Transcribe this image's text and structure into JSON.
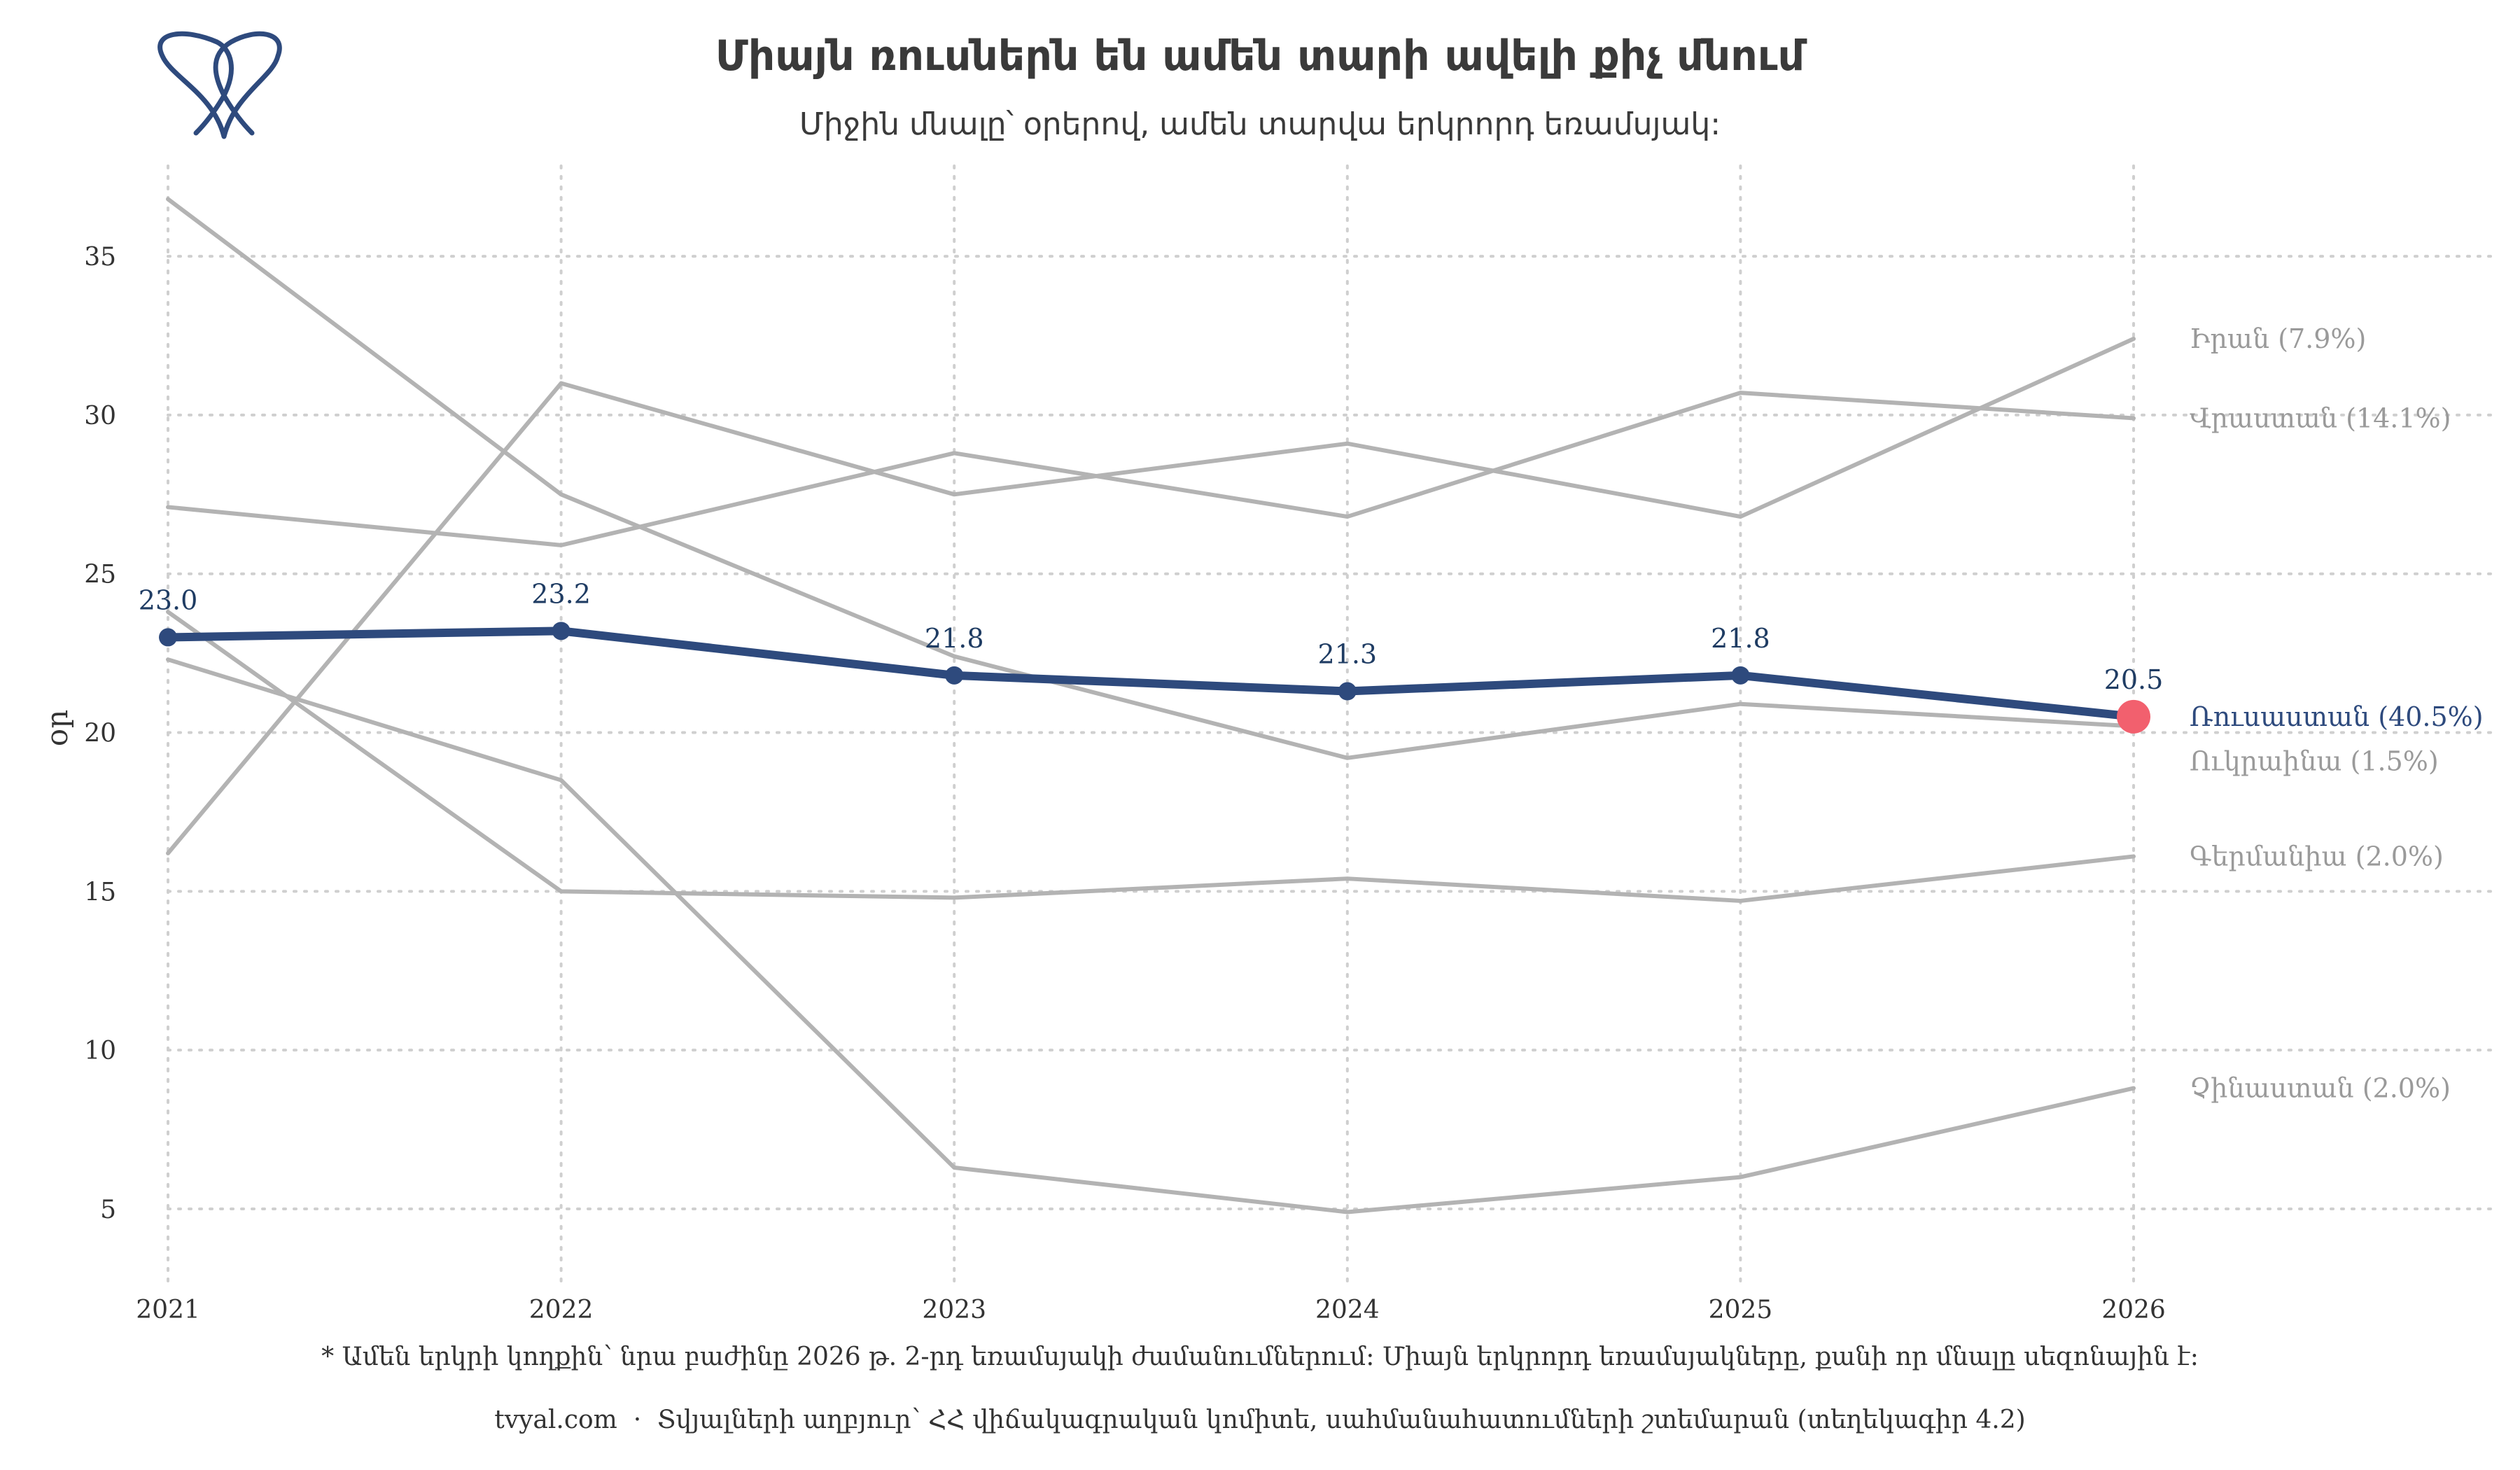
{
  "brand": {
    "logo_icon": "tooth-logo-icon",
    "logo_color": "#2e4a7d"
  },
  "chart_data": {
    "type": "line",
    "title": "Միայն ռուսներն են ամեն տարի ավելի քիչ մնում",
    "subtitle": "Միջին մնալը՝ օրերով, ամեն տարվա երկրորդ եռամսյակ:",
    "xlabel": "",
    "ylabel": "օր",
    "x": [
      2021,
      2022,
      2023,
      2024,
      2025,
      2026
    ],
    "xlim": [
      2021,
      2026
    ],
    "ylim": [
      3.5,
      38
    ],
    "yticks": [
      5,
      10,
      15,
      20,
      25,
      30,
      35
    ],
    "grid": true,
    "highlight_series": "Ռուսաստան (40.5%)",
    "series": [
      {
        "name": "Իրան (7.9%)",
        "values": [
          16.2,
          31.0,
          27.5,
          29.1,
          26.8,
          32.4
        ],
        "color": "#b3b3b3"
      },
      {
        "name": "Վրաստան (14.1%)",
        "values": [
          27.1,
          25.9,
          28.8,
          26.8,
          30.7,
          29.9
        ],
        "color": "#b3b3b3"
      },
      {
        "name": "Ուկրաինա (1.5%)",
        "values": [
          36.8,
          27.5,
          22.4,
          19.2,
          20.9,
          20.2
        ],
        "color": "#b3b3b3"
      },
      {
        "name": "Գերմանիա (2.0%)",
        "values": [
          23.8,
          15.0,
          14.8,
          15.4,
          14.7,
          16.1
        ],
        "color": "#b3b3b3"
      },
      {
        "name": "Չինաստան (2.0%)",
        "values": [
          22.3,
          18.5,
          6.3,
          4.9,
          6.0,
          8.8
        ],
        "color": "#b3b3b3"
      },
      {
        "name": "Ռուսաստան (40.5%)",
        "values": [
          23.0,
          23.2,
          21.8,
          21.3,
          21.8,
          20.5
        ],
        "color": "#2e4a7d",
        "endpoint_color": "#f2606e",
        "value_labels": [
          "23.0",
          "23.2",
          "21.8",
          "21.3",
          "21.8",
          "20.5"
        ]
      }
    ],
    "footnote": "* Ամեն երկրի կողքին՝ նրա բաժինը 2026 թ. 2-րդ եռամսյակի ժամանումներում: Միայն երկրորդ եռամսյակները, քանի որ մնալը սեզոնային է:",
    "source": "tvyal.com  ·  Տվյալների աղբյուր՝ ՀՀ վիճակագրական կոմիտե, սահմանահատումների շտեմարան (տեղեկագիր 4.2)"
  }
}
